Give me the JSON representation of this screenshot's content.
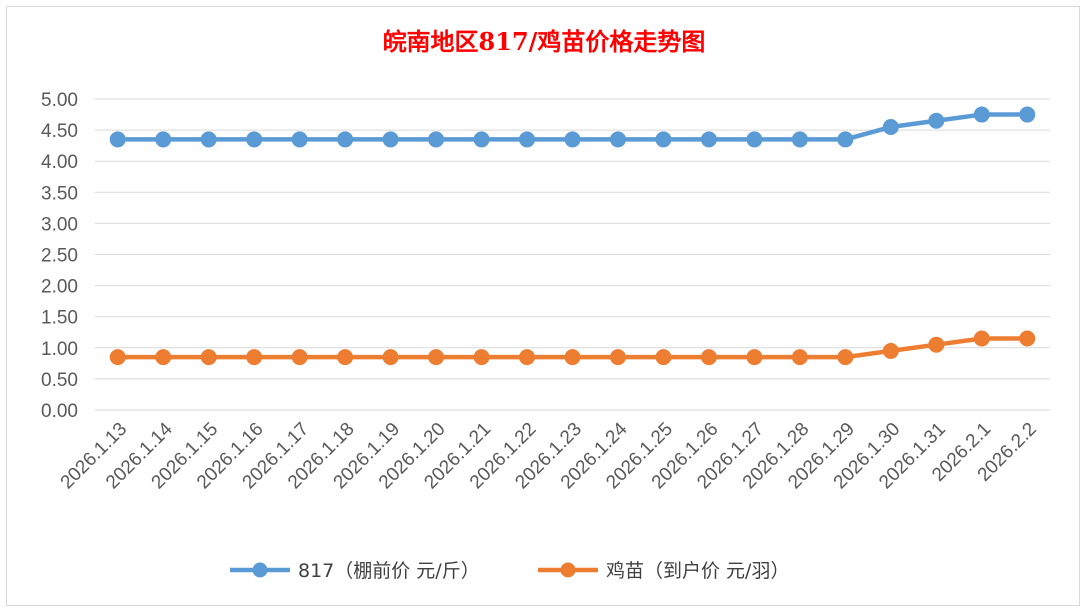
{
  "chart_data": {
    "type": "line",
    "title": "皖南地区817/鸡苗价格走势图",
    "title_color": "#ff0000",
    "categories": [
      "2026.1.13",
      "2026.1.14",
      "2026.1.15",
      "2026.1.16",
      "2026.1.17",
      "2026.1.18",
      "2026.1.19",
      "2026.1.20",
      "2026.1.21",
      "2026.1.22",
      "2026.1.23",
      "2026.1.24",
      "2026.1.25",
      "2026.1.26",
      "2026.1.27",
      "2026.1.28",
      "2026.1.29",
      "2026.1.30",
      "2026.1.31",
      "2026.2.1",
      "2026.2.2"
    ],
    "series": [
      {
        "name": "817（棚前价 元/斤）",
        "color": "#5b9bd5",
        "values": [
          4.35,
          4.35,
          4.35,
          4.35,
          4.35,
          4.35,
          4.35,
          4.35,
          4.35,
          4.35,
          4.35,
          4.35,
          4.35,
          4.35,
          4.35,
          4.35,
          4.35,
          4.55,
          4.65,
          4.75,
          4.75
        ]
      },
      {
        "name": "鸡苗（到户价 元/羽）",
        "color": "#ed7d31",
        "values": [
          0.85,
          0.85,
          0.85,
          0.85,
          0.85,
          0.85,
          0.85,
          0.85,
          0.85,
          0.85,
          0.85,
          0.85,
          0.85,
          0.85,
          0.85,
          0.85,
          0.85,
          0.95,
          1.05,
          1.15,
          1.15
        ]
      }
    ],
    "yticks": [
      "0.00",
      "0.50",
      "1.00",
      "1.50",
      "2.00",
      "2.50",
      "3.00",
      "3.50",
      "4.00",
      "4.50",
      "5.00"
    ],
    "ylim": [
      0,
      5
    ],
    "grid": true,
    "legend_position": "bottom"
  }
}
